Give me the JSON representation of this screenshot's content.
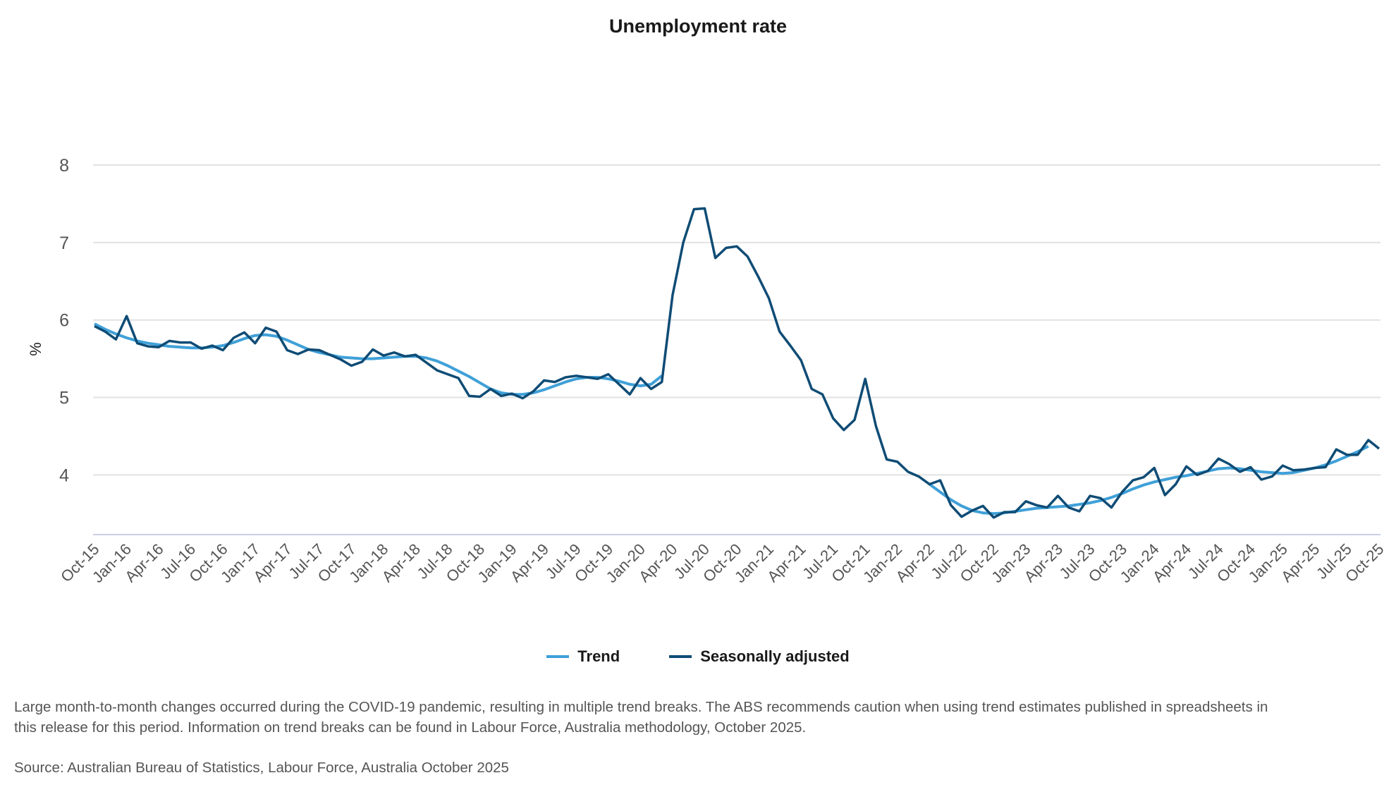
{
  "chart_data": {
    "type": "line",
    "title": "Unemployment rate",
    "ylabel": "%",
    "xlabel": "",
    "ylim": [
      3.23,
      8
    ],
    "y_ticks": [
      "4",
      "5",
      "6",
      "7",
      "8"
    ],
    "grid": true,
    "legend_position": "bottom-center",
    "start_month": "Oct-15",
    "x_tick_labels": [
      "Oct-15",
      "Jan-16",
      "Apr-16",
      "Jul-16",
      "Oct-16",
      "Jan-17",
      "Apr-17",
      "Jul-17",
      "Oct-17",
      "Jan-18",
      "Apr-18",
      "Jul-18",
      "Oct-18",
      "Jan-19",
      "Apr-19",
      "Jul-19",
      "Oct-19",
      "Jan-20",
      "Apr-20",
      "Jul-20",
      "Oct-20",
      "Jan-21",
      "Apr-21",
      "Jul-21",
      "Oct-21",
      "Jan-22",
      "Apr-22",
      "Jul-22",
      "Oct-22",
      "Jan-23",
      "Apr-23",
      "Jul-23",
      "Oct-23",
      "Jan-24",
      "Apr-24",
      "Jul-24",
      "Oct-24",
      "Jan-25",
      "Apr-25",
      "Jul-25",
      "Oct-25"
    ],
    "series": [
      {
        "name": "Trend",
        "color": "#3fa0d8",
        "values": [
          5.95,
          5.88,
          5.82,
          5.77,
          5.73,
          5.7,
          5.68,
          5.66,
          5.65,
          5.64,
          5.64,
          5.65,
          5.67,
          5.71,
          5.76,
          5.8,
          5.81,
          5.79,
          5.74,
          5.68,
          5.62,
          5.58,
          5.55,
          5.52,
          5.51,
          5.5,
          5.5,
          5.51,
          5.52,
          5.53,
          5.53,
          5.51,
          5.47,
          5.41,
          5.34,
          5.27,
          5.19,
          5.11,
          5.06,
          5.04,
          5.04,
          5.06,
          5.1,
          5.15,
          5.2,
          5.24,
          5.26,
          5.26,
          5.24,
          5.21,
          5.17,
          5.15,
          5.17,
          5.28,
          null,
          null,
          null,
          null,
          null,
          null,
          null,
          null,
          null,
          null,
          null,
          null,
          null,
          null,
          null,
          null,
          null,
          null,
          null,
          null,
          null,
          null,
          null,
          null,
          3.88,
          3.78,
          3.68,
          3.6,
          3.54,
          3.51,
          3.5,
          3.51,
          3.53,
          3.55,
          3.57,
          3.58,
          3.59,
          3.6,
          3.62,
          3.64,
          3.67,
          3.71,
          3.76,
          3.82,
          3.87,
          3.91,
          3.94,
          3.97,
          3.99,
          4.02,
          4.05,
          4.08,
          4.09,
          4.08,
          4.06,
          4.04,
          4.03,
          4.02,
          4.03,
          4.06,
          4.09,
          4.13,
          4.18,
          4.24,
          4.3,
          4.37
        ]
      },
      {
        "name": "Seasonally adjusted",
        "color": "#0f4c75",
        "values": [
          5.92,
          5.85,
          5.75,
          6.05,
          5.7,
          5.66,
          5.65,
          5.73,
          5.71,
          5.71,
          5.63,
          5.67,
          5.61,
          5.77,
          5.84,
          5.7,
          5.9,
          5.85,
          5.61,
          5.56,
          5.62,
          5.61,
          5.55,
          5.49,
          5.41,
          5.46,
          5.62,
          5.54,
          5.58,
          5.53,
          5.55,
          5.45,
          5.35,
          5.3,
          5.25,
          5.02,
          5.01,
          5.11,
          5.02,
          5.05,
          4.99,
          5.08,
          5.22,
          5.2,
          5.26,
          5.28,
          5.26,
          5.24,
          5.3,
          5.17,
          5.04,
          5.25,
          5.11,
          5.2,
          6.32,
          7.0,
          7.43,
          7.44,
          6.8,
          6.93,
          6.95,
          6.82,
          6.56,
          6.28,
          5.85,
          5.67,
          5.48,
          5.11,
          5.04,
          4.73,
          4.58,
          4.71,
          5.24,
          4.63,
          4.2,
          4.17,
          4.04,
          3.98,
          3.88,
          3.93,
          3.61,
          3.46,
          3.54,
          3.6,
          3.45,
          3.52,
          3.52,
          3.66,
          3.61,
          3.58,
          3.73,
          3.58,
          3.53,
          3.73,
          3.7,
          3.58,
          3.78,
          3.93,
          3.97,
          4.09,
          3.74,
          3.88,
          4.11,
          4.0,
          4.05,
          4.21,
          4.14,
          4.04,
          4.1,
          3.94,
          3.98,
          4.12,
          4.06,
          4.07,
          4.09,
          4.1,
          4.33,
          4.26,
          4.26,
          4.45,
          4.34
        ]
      }
    ]
  },
  "footnote": "Large month-to-month changes occurred during the COVID-19 pandemic, resulting in multiple trend breaks. The ABS recommends caution when using trend estimates published in spreadsheets in this release for this period. Information on trend breaks can be found in Labour Force, Australia methodology, October 2025.",
  "source": "Source: Australian Bureau of Statistics, Labour Force, Australia October 2025"
}
